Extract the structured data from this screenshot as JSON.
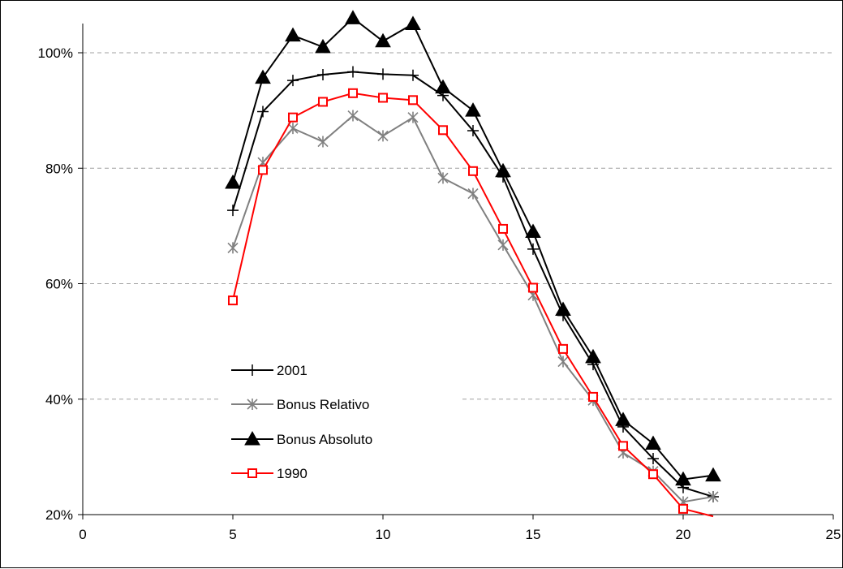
{
  "chart_data": {
    "type": "line",
    "title": "",
    "xlabel": "",
    "ylabel": "",
    "xlim": [
      0,
      25
    ],
    "ylim": [
      0.2,
      1.05
    ],
    "x_ticks": [
      0,
      5,
      10,
      15,
      20,
      25
    ],
    "x_tick_labels": [
      "0",
      "5",
      "10",
      "15",
      "20",
      "25"
    ],
    "y_ticks": [
      0.2,
      0.4,
      0.6,
      0.8,
      1.0
    ],
    "y_tick_labels": [
      "20%",
      "40%",
      "60%",
      "80%",
      "100%"
    ],
    "grid": "horizontal dashed",
    "legend_position": "lower-left inside plot",
    "x": [
      5,
      6,
      7,
      8,
      9,
      10,
      11,
      12,
      13,
      14,
      15,
      16,
      17,
      18,
      19,
      20,
      21
    ],
    "series": [
      {
        "name": "2001",
        "color": "#000000",
        "marker": "plus",
        "values": [
          0.727,
          0.898,
          0.952,
          0.962,
          0.967,
          0.963,
          0.961,
          0.926,
          0.865,
          0.785,
          0.66,
          0.545,
          0.46,
          0.352,
          0.297,
          0.247,
          0.231
        ]
      },
      {
        "name": "Bonus Relativo",
        "color": "#808080",
        "marker": "asterisk",
        "values": [
          0.662,
          0.81,
          0.869,
          0.846,
          0.891,
          0.856,
          0.888,
          0.783,
          0.756,
          0.667,
          0.58,
          0.465,
          0.398,
          0.307,
          0.275,
          0.222,
          0.231
        ]
      },
      {
        "name": "Bonus Absoluto",
        "color": "#000000",
        "marker": "triangle",
        "values": [
          0.775,
          0.957,
          1.03,
          1.01,
          1.06,
          1.02,
          1.05,
          0.94,
          0.9,
          0.795,
          0.69,
          0.555,
          0.473,
          0.364,
          0.323,
          0.261,
          0.268
        ]
      },
      {
        "name": "1990",
        "color": "#ff0000",
        "marker": "square",
        "values": [
          0.571,
          0.797,
          0.888,
          0.915,
          0.93,
          0.922,
          0.918,
          0.866,
          0.795,
          0.695,
          0.593,
          0.487,
          0.404,
          0.319,
          0.27,
          0.21,
          0.197
        ]
      }
    ]
  }
}
